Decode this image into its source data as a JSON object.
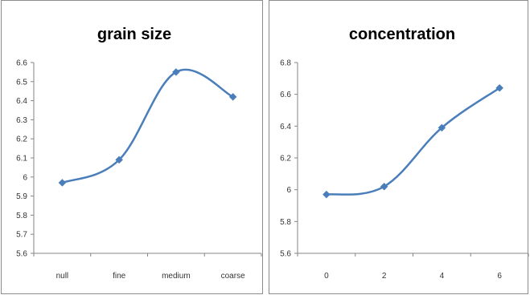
{
  "chart_data": [
    {
      "type": "line",
      "title": "grain size",
      "categories": [
        "null",
        "fine",
        "medium",
        "coarse"
      ],
      "series": [
        {
          "values": [
            5.97,
            6.09,
            6.55,
            6.42
          ],
          "color": "#4a7ebb",
          "marker": "diamond",
          "smooth": true
        }
      ],
      "ylim": [
        5.6,
        6.6
      ],
      "yticks": [
        "5.6",
        "5.7",
        "5.8",
        "5.9",
        "6",
        "6.1",
        "6.2",
        "6.3",
        "6.4",
        "6.5",
        "6.6"
      ],
      "xlabel": "",
      "ylabel": "",
      "grid": false,
      "legend": "none"
    },
    {
      "type": "line",
      "title": "concentration",
      "categories": [
        "0",
        "2",
        "4",
        "6"
      ],
      "series": [
        {
          "values": [
            5.97,
            6.02,
            6.39,
            6.64
          ],
          "color": "#4a7ebb",
          "marker": "diamond",
          "smooth": true
        }
      ],
      "ylim": [
        5.6,
        6.8
      ],
      "yticks": [
        "5.6",
        "5.8",
        "6",
        "6.2",
        "6.4",
        "6.6",
        "6.8"
      ],
      "xlabel": "",
      "ylabel": "",
      "grid": false,
      "legend": "none"
    }
  ]
}
